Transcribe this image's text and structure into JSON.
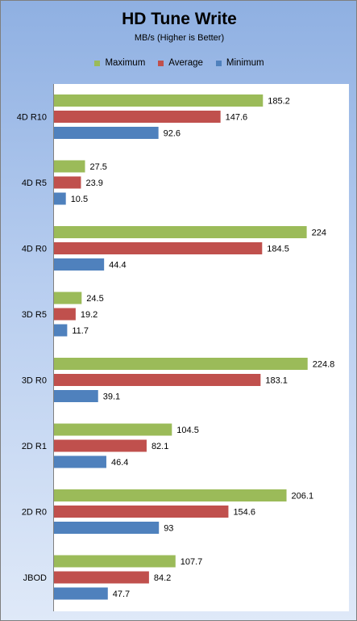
{
  "chart_data": {
    "type": "bar",
    "orientation": "horizontal",
    "title": "HD Tune Write",
    "subtitle": "MB/s (Higher is Better)",
    "categories": [
      "4D R10",
      "4D R5",
      "4D R0",
      "3D R5",
      "3D R0",
      "2D R1",
      "2D R0",
      "JBOD"
    ],
    "series": [
      {
        "name": "Maximum",
        "color": "#9bbb59",
        "values": [
          185.2,
          27.5,
          224,
          24.5,
          224.8,
          104.5,
          206.1,
          107.7
        ]
      },
      {
        "name": "Average",
        "color": "#c0504d",
        "values": [
          147.6,
          23.9,
          184.5,
          19.2,
          183.1,
          82.1,
          154.6,
          84.2
        ]
      },
      {
        "name": "Minimum",
        "color": "#4f81bd",
        "values": [
          92.6,
          10.5,
          44.4,
          11.7,
          39.1,
          46.4,
          93,
          47.7
        ]
      }
    ],
    "xlim": [
      0,
      240
    ],
    "legend_position": "top",
    "grid": false
  }
}
